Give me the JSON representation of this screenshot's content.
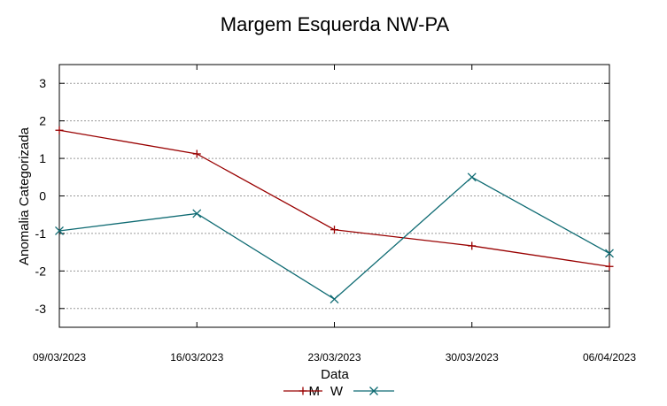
{
  "chart_data": {
    "type": "line",
    "title": "Margem Esquerda NW-PA",
    "xlabel": "Data",
    "ylabel": "Anomalia Categorizada",
    "categories": [
      "09/03/2023",
      "16/03/2023",
      "23/03/2023",
      "30/03/2023",
      "06/04/2023"
    ],
    "ylim": [
      -3.5,
      3.5
    ],
    "yticks": [
      3,
      2,
      1,
      0,
      -1,
      -2,
      -3
    ],
    "grid": true,
    "legend_position": "bottom",
    "series": [
      {
        "name": "M",
        "color": "#990000",
        "marker": "plus",
        "values": [
          1.75,
          1.12,
          -0.9,
          -1.33,
          -1.88
        ]
      },
      {
        "name": "W",
        "color": "#0f6b73",
        "marker": "cross",
        "values": [
          -0.93,
          -0.47,
          -2.75,
          0.5,
          -1.53
        ]
      }
    ]
  }
}
